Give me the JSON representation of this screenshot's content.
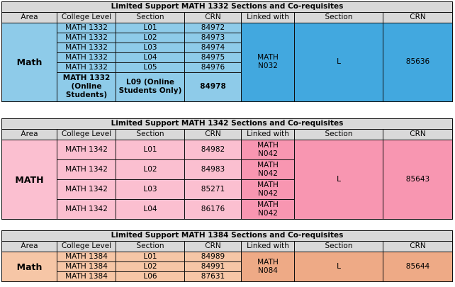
{
  "headers": {
    "area": "Area",
    "college_level": "College Level",
    "section": "Section",
    "crn": "CRN",
    "linked_with": "Linked with",
    "linked_section": "Section",
    "linked_crn": "CRN"
  },
  "tables": [
    {
      "title_prefix": "Limited Support ",
      "title_course": "MATH 1332",
      "title_suffix": " Sections and Co-requisites",
      "area": "Math",
      "rows": [
        {
          "level": "MATH 1332",
          "section": "L01",
          "crn": "84972"
        },
        {
          "level": "MATH 1332",
          "section": "L02",
          "crn": "84973"
        },
        {
          "level": "MATH 1332",
          "section": "L03",
          "crn": "84974"
        },
        {
          "level": "MATH 1332",
          "section": "L04",
          "crn": "84975"
        },
        {
          "level": "MATH 1332",
          "section": "L05",
          "crn": "84976"
        }
      ],
      "online_row": {
        "level_line1": "MATH 1332",
        "level_line2": "(Online Students)",
        "section_line1": "L09 (Online",
        "section_line2": "Students Only)",
        "crn": "84978"
      },
      "linked_with": {
        "line1": "MATH",
        "line2": "N032"
      },
      "linked_section": "L",
      "linked_crn": "85636",
      "colors": {
        "left": "#8ecbe9",
        "right": "#42a8df"
      }
    },
    {
      "title_prefix": "Limited Support ",
      "title_course": "MATH 1342",
      "title_suffix": " Sections and Co-requisites",
      "area": "MATH",
      "rows": [
        {
          "level": "MATH 1342",
          "section": "L01",
          "crn": "84982",
          "linked_line1": "MATH",
          "linked_line2": "N042"
        },
        {
          "level": "MATH 1342",
          "section": "L02",
          "crn": "84983",
          "linked_line1": "MATH",
          "linked_line2": "N042"
        },
        {
          "level": "MATH 1342",
          "section": "L03",
          "crn": "85271",
          "linked_line1": "MATH",
          "linked_line2": "N042"
        },
        {
          "level": "MATH 1342",
          "section": "L04",
          "crn": "86176",
          "linked_line1": "MATH",
          "linked_line2": "N042"
        }
      ],
      "linked_section": "L",
      "linked_crn": "85643",
      "colors": {
        "left": "#fbbfd0",
        "right": "#f896b1"
      }
    },
    {
      "title_prefix": "Limited Support ",
      "title_course": "MATH 1384",
      "title_suffix": " Sections and Co-requisites",
      "area": "Math",
      "rows": [
        {
          "level": "MATH 1384",
          "section": "L01",
          "crn": "84989"
        },
        {
          "level": "MATH 1384",
          "section": "L02",
          "crn": "84991"
        },
        {
          "level": "MATH 1384",
          "section": "L06",
          "crn": "87631"
        }
      ],
      "linked_with": {
        "line1": "MATH",
        "line2": "N084"
      },
      "linked_section": "L",
      "linked_crn": "85644",
      "colors": {
        "left": "#f6c6a6",
        "right": "#eeaa86"
      }
    }
  ]
}
